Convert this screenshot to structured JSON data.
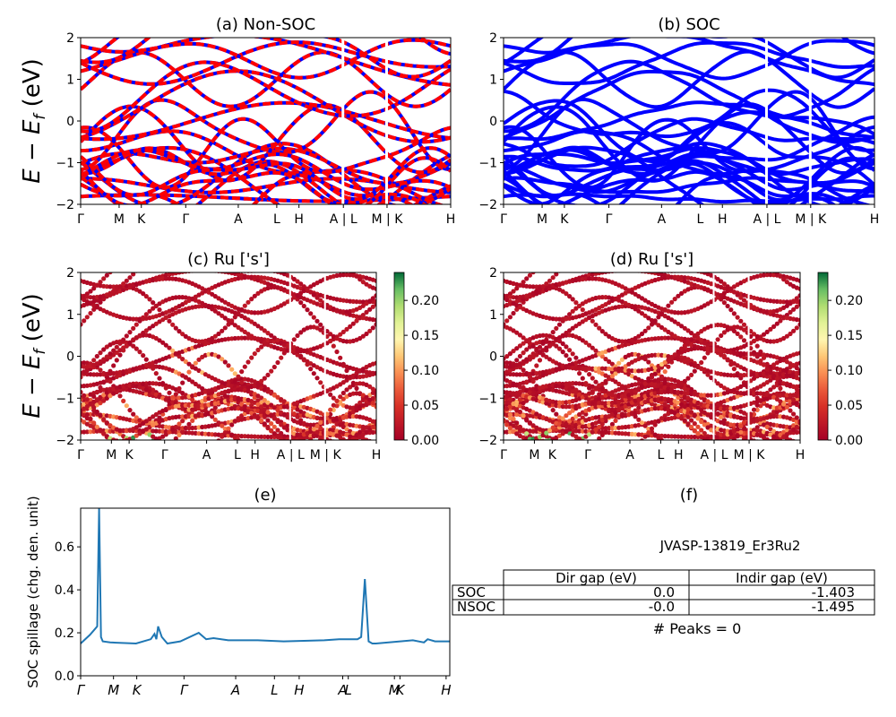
{
  "figure": {
    "band_ylabel": "E − E",
    "band_ylabel_sub": "f",
    "band_ylabel_unit": " (eV)",
    "kpath_labels": [
      "Γ",
      "M",
      "K",
      "Γ",
      "A",
      "L",
      "H",
      "A | L",
      "M | K",
      "H"
    ]
  },
  "panel_a": {
    "title": "(a) Non-SOC",
    "ylim": [
      -2,
      2
    ],
    "yticks": [
      "−2",
      "−1",
      "0",
      "1",
      "2"
    ],
    "colors": {
      "spin_up": "#0000ff",
      "spin_down": "#ff0000"
    }
  },
  "panel_b": {
    "title": "(b) SOC",
    "ylim": [
      -2,
      2
    ],
    "yticks": [
      "−2",
      "−1",
      "0",
      "1",
      "2"
    ],
    "colors": {
      "band": "#0000ff"
    }
  },
  "panel_c": {
    "title": "(c)  Ru ['s']",
    "ylim": [
      -2,
      2
    ],
    "yticks": [
      "−2",
      "−1",
      "0",
      "1",
      "2"
    ],
    "colorbar": {
      "ticks": [
        "0.00",
        "0.05",
        "0.10",
        "0.15",
        "0.20"
      ],
      "range": [
        0,
        0.24
      ],
      "colormap": "RdYlGn"
    }
  },
  "panel_d": {
    "title": "(d) Ru ['s']",
    "ylim": [
      -2,
      2
    ],
    "yticks": [
      "−2",
      "−1",
      "0",
      "1",
      "2"
    ],
    "colorbar": {
      "ticks": [
        "0.00",
        "0.05",
        "0.10",
        "0.15",
        "0.20"
      ],
      "range": [
        0,
        0.24
      ],
      "colormap": "RdYlGn"
    }
  },
  "panel_e": {
    "title": "(e)",
    "ylabel": "SOC spillage (chg. den. unit)",
    "yticks": [
      "0.0",
      "0.2",
      "0.4",
      "0.6"
    ],
    "xticks": [
      "Γ",
      "M",
      "K",
      "Γ",
      "A",
      "L",
      "H",
      "A",
      "L",
      "M",
      "K",
      "H"
    ],
    "color": "#1f77b4"
  },
  "panel_f": {
    "title": "(f)",
    "system_name": "JVASP-13819_Er3Ru2",
    "table": {
      "headers": [
        "",
        "Dir gap (eV)",
        "Indir gap (eV)"
      ],
      "rows": [
        {
          "label": "SOC",
          "dir": "0.0",
          "indir": "-1.403"
        },
        {
          "label": "NSOC",
          "dir": "-0.0",
          "indir": "-1.495"
        }
      ]
    },
    "peaks_text": "# Peaks = 0"
  },
  "chart_data": [
    {
      "type": "line",
      "title": "(a) Non-SOC",
      "ylabel": "E − E_f (eV)",
      "ylim": [
        -2,
        2
      ],
      "xticks": [
        "Γ",
        "M",
        "K",
        "Γ",
        "A",
        "L",
        "H",
        "A | L",
        "M | K",
        "H"
      ],
      "series": [
        {
          "values_at_ticks": [
            0.0,
            0.55,
            0.35,
            0.0,
            0.0,
            0.0,
            0.0,
            -0.2,
            0.2,
            0.0
          ]
        },
        {
          "values_at_ticks": [
            -0.55,
            -0.85,
            -1.0,
            -0.5,
            -0.9,
            -1.2,
            -1.1,
            -1.0,
            -1.1,
            -1.2
          ]
        },
        {
          "values_at_ticks": [
            1.3,
            1.0,
            0.7,
            0.4,
            0.9,
            0.9,
            0.9,
            0.6,
            0.8,
            1.0
          ]
        },
        {
          "values_at_ticks": [
            -1.5,
            -1.3,
            -1.8,
            -1.0,
            -1.5,
            -1.3,
            -1.6,
            -1.5,
            -1.6,
            -1.5
          ]
        },
        {
          "values_at_ticks": [
            1.6,
            1.4,
            1.7,
            1.7,
            1.6,
            1.7,
            1.8,
            1.7,
            1.6,
            1.6
          ]
        }
      ]
    },
    {
      "type": "line",
      "title": "(b) SOC",
      "ylim": [
        -2,
        2
      ],
      "xticks": [
        "Γ",
        "M",
        "K",
        "Γ",
        "A",
        "L",
        "H",
        "A | L",
        "M | K",
        "H"
      ],
      "series": [
        {
          "values_at_ticks": [
            0.0,
            0.55,
            0.35,
            0.0,
            0.0,
            0.0,
            0.0,
            0.5,
            0.2,
            0.0
          ]
        },
        {
          "values_at_ticks": [
            -0.55,
            -0.85,
            -1.0,
            -0.5,
            -0.9,
            -1.2,
            -1.1,
            -0.9,
            -1.1,
            -1.2
          ]
        },
        {
          "values_at_ticks": [
            1.3,
            1.0,
            0.7,
            0.4,
            0.9,
            0.9,
            0.9,
            0.6,
            0.8,
            1.0
          ]
        },
        {
          "values_at_ticks": [
            -1.5,
            -1.3,
            -1.8,
            -1.0,
            -1.5,
            -1.3,
            -1.6,
            -1.5,
            -1.6,
            -1.5
          ]
        },
        {
          "values_at_ticks": [
            1.6,
            1.4,
            1.7,
            1.7,
            1.6,
            1.7,
            1.8,
            1.7,
            1.6,
            1.6
          ]
        }
      ]
    },
    {
      "type": "scatter",
      "title": "(c)  Ru ['s']",
      "ylim": [
        -2,
        2
      ],
      "colorbar_range": [
        0,
        0.24
      ]
    },
    {
      "type": "scatter",
      "title": "(d) Ru ['s']",
      "ylim": [
        -2,
        2
      ],
      "colorbar_range": [
        0,
        0.24
      ]
    },
    {
      "type": "line",
      "title": "(e)",
      "ylabel": "SOC spillage (chg. den. unit)",
      "ylim": [
        0,
        0.78
      ],
      "x": [
        0.0,
        0.025,
        0.035,
        0.045,
        0.05,
        0.055,
        0.06,
        0.08,
        0.15,
        0.19,
        0.2,
        0.205,
        0.21,
        0.22,
        0.235,
        0.27,
        0.32,
        0.34,
        0.36,
        0.4,
        0.48,
        0.55,
        0.66,
        0.7,
        0.75,
        0.76,
        0.77,
        0.78,
        0.79,
        0.8,
        0.9,
        0.93,
        0.94,
        0.96,
        1.0
      ],
      "y": [
        0.15,
        0.19,
        0.21,
        0.23,
        0.78,
        0.18,
        0.16,
        0.155,
        0.15,
        0.17,
        0.195,
        0.17,
        0.23,
        0.18,
        0.15,
        0.16,
        0.2,
        0.17,
        0.175,
        0.165,
        0.165,
        0.16,
        0.165,
        0.17,
        0.17,
        0.18,
        0.45,
        0.16,
        0.15,
        0.15,
        0.165,
        0.155,
        0.17,
        0.16,
        0.16
      ]
    },
    {
      "type": "table",
      "title": "(f)",
      "columns": [
        "",
        "Dir gap (eV)",
        "Indir gap (eV)"
      ],
      "rows": [
        [
          "SOC",
          "0.0",
          "-1.403"
        ],
        [
          "NSOC",
          "-0.0",
          "-1.495"
        ]
      ]
    }
  ]
}
